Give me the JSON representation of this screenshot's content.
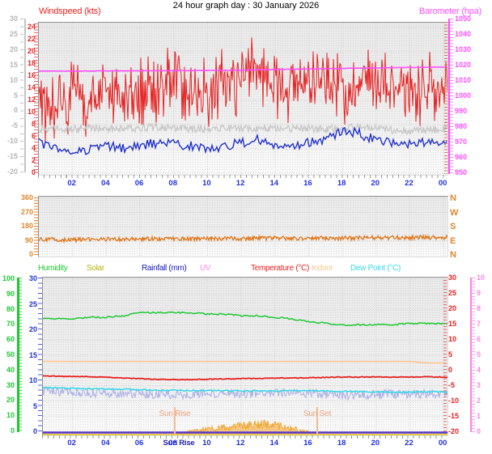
{
  "title": "24 hour graph day : 30 January 2026",
  "hour_labels": [
    "02",
    "04",
    "06",
    "08",
    "10",
    "12",
    "14",
    "16",
    "18",
    "20",
    "22",
    "00"
  ],
  "wind_panel": {
    "left_axis_label": "Windspeed (kts)",
    "right_axis_label": "Barometer (hpa)",
    "outer_left_ticks": [
      "30",
      "25",
      "20",
      "15",
      "10",
      "5",
      "0",
      "-5",
      "-10",
      "-15",
      "-20"
    ],
    "speed_ticks": [
      "24",
      "22",
      "20",
      "18",
      "16",
      "14",
      "12",
      "10",
      "8",
      "6",
      "4",
      "2",
      "0"
    ],
    "barometer_ticks": [
      "1050",
      "1040",
      "1030",
      "1020",
      "1010",
      "1000",
      "990",
      "980",
      "970",
      "960",
      "950"
    ]
  },
  "direction_panel": {
    "degree_ticks": [
      "360",
      "270",
      "180",
      "90",
      "0"
    ],
    "compass_ticks": [
      "N",
      "W",
      "S",
      "E",
      "N"
    ]
  },
  "climate_panel": {
    "legend": [
      {
        "label": "Humidity",
        "color": "#1ec832"
      },
      {
        "label": "Solar",
        "color": "#b9b414"
      },
      {
        "label": "Rainfall (mm)",
        "color": "#1515bb"
      },
      {
        "label": "UV",
        "color": "#ff85e0"
      },
      {
        "label": "Temperature (°C)",
        "color": "#e62222"
      },
      {
        "label": "Indoor",
        "color": "#ffc68f"
      },
      {
        "label": "Dew Point (°C)",
        "color": "#38d8e8"
      }
    ],
    "humidity_ticks": [
      "100",
      "90",
      "80",
      "70",
      "60",
      "50",
      "40",
      "30",
      "20",
      "10",
      "0"
    ],
    "rain_ticks": [
      "30",
      "25",
      "20",
      "15",
      "10",
      "5",
      "0"
    ],
    "temp_ticks": [
      "30",
      "25",
      "20",
      "15",
      "10",
      "5",
      "0",
      "-5",
      "-10",
      "-15",
      "-20"
    ],
    "uv_ticks": [
      "10",
      "9",
      "8",
      "7",
      "6",
      "5",
      "4",
      "3",
      "2",
      "1",
      "0"
    ],
    "sunrise_label": "Sun Rise",
    "sunset_label": "Sun Set",
    "sunrise_axis_label": "Sun Rise"
  },
  "chart_data": [
    {
      "id": "wind_and_barometer",
      "type": "line",
      "x_unit": "hour_of_day",
      "x_range": [
        0,
        24
      ],
      "x_tick_labels": [
        "02",
        "04",
        "06",
        "08",
        "10",
        "12",
        "14",
        "16",
        "18",
        "20",
        "22",
        "00"
      ],
      "left_axis": {
        "label": "Windspeed (kts)",
        "range": [
          0,
          24
        ]
      },
      "outer_left_axis": {
        "range": [
          -20,
          30
        ]
      },
      "right_axis": {
        "label": "Barometer (hpa)",
        "range": [
          950,
          1050
        ]
      },
      "series": [
        {
          "name": "wind_gust_kts",
          "color": "#e62222",
          "noise": 5.5,
          "values": [
            12,
            11,
            13,
            12,
            14,
            13,
            12,
            14,
            15,
            14,
            13,
            15,
            16,
            17,
            15,
            14,
            16,
            15,
            14,
            15,
            16,
            15,
            14,
            13,
            13
          ]
        },
        {
          "name": "wind_secondary_gray",
          "color": "#c9c9c9",
          "noise": 0.65,
          "values": [
            7.3,
            7.4,
            7.2,
            7.5,
            7.4,
            7.3,
            7.5,
            7.6,
            7.4,
            7.3,
            7.4,
            7.5,
            7.3,
            7.4,
            7.5,
            7.4,
            7.3,
            7.2,
            7.4,
            7.6,
            7.3,
            7.1,
            7.0,
            7.1,
            7.2
          ]
        },
        {
          "name": "wind_average_kts",
          "color": "#2233cc",
          "noise": 0.8,
          "values": [
            5,
            4,
            3.5,
            4,
            4.5,
            4,
            4.5,
            5,
            4.8,
            4.5,
            4,
            4.5,
            5,
            5.5,
            4.5,
            4,
            5,
            5.5,
            7,
            6.5,
            5.5,
            5,
            4.8,
            5,
            5.5
          ]
        },
        {
          "name": "barometer_hpa",
          "color": "#ff4dff",
          "noise": 0.12,
          "values": [
            1016.4,
            1016.4,
            1016.4,
            1016.5,
            1016.5,
            1016.5,
            1016.6,
            1016.6,
            1016.7,
            1016.7,
            1016.8,
            1016.9,
            1017.0,
            1017.2,
            1017.4,
            1017.6,
            1017.8,
            1017.9,
            1018.1,
            1018.3,
            1018.5,
            1018.6,
            1018.8,
            1018.9,
            1019.0
          ]
        }
      ]
    },
    {
      "id": "wind_direction",
      "type": "line",
      "x_unit": "hour_of_day",
      "x_range": [
        0,
        24
      ],
      "y_axis": {
        "range": [
          0,
          360
        ],
        "tick_labels": [
          "360",
          "270",
          "180",
          "90",
          "0"
        ],
        "compass": [
          "N",
          "W",
          "S",
          "E",
          "N"
        ]
      },
      "series": [
        {
          "name": "wind_direction_deg",
          "color": "#e0761a",
          "noise": 13,
          "values": [
            100,
            97,
            95,
            98,
            100,
            99,
            101,
            103,
            104,
            102,
            104,
            105,
            103,
            106,
            107,
            105,
            106,
            108,
            106,
            108,
            110,
            109,
            111,
            112,
            111
          ]
        }
      ]
    },
    {
      "id": "climate",
      "type": "line",
      "x_unit": "hour_of_day",
      "x_range": [
        0,
        24
      ],
      "left_axis": {
        "label": "Humidity %",
        "range": [
          0,
          100
        ]
      },
      "inner_left_axis": {
        "label": "Rainfall (mm)",
        "range": [
          0,
          30
        ]
      },
      "right_axis": {
        "label": "Temperature (°C)",
        "range": [
          -20,
          30
        ]
      },
      "outer_right_axis": {
        "label": "UV",
        "range": [
          0,
          10
        ]
      },
      "events": {
        "sunrise_hour": 8.1,
        "sunset_hour": 16.5
      },
      "series": [
        {
          "name": "wind_chill_c",
          "color": "#abb0e6",
          "noise": 1.5,
          "values": [
            -6.5,
            -6.8,
            -7.0,
            -7.2,
            -7.4,
            -7.3,
            -7.5,
            -7.6,
            -7.7,
            -7.6,
            -7.5,
            -7.4,
            -7.5,
            -7.6,
            -7.4,
            -7.3,
            -7.5,
            -7.8,
            -8.2,
            -8.0,
            -7.8,
            -7.6,
            -7.5,
            -7.4,
            -7.5
          ]
        },
        {
          "name": "humidity_pct",
          "color": "#1ec832",
          "noise": 0.5,
          "values": [
            74,
            74,
            74,
            75,
            75,
            76,
            78,
            78,
            78,
            78,
            77,
            77,
            76,
            76,
            75,
            74,
            72,
            71,
            70,
            70,
            70,
            70,
            71,
            71,
            71
          ]
        },
        {
          "name": "indoor_temperature_c",
          "color": "#ffc68f",
          "noise": 0,
          "values": [
            3,
            3,
            3,
            3,
            3,
            3,
            3,
            3,
            3,
            3,
            3,
            3,
            3,
            3,
            3,
            3,
            3,
            3,
            3,
            3,
            3,
            3,
            3,
            2.5,
            2.5
          ]
        },
        {
          "name": "temperature_c",
          "color": "#e62222",
          "noise": 0.12,
          "values": [
            -1.6,
            -1.8,
            -1.9,
            -2.0,
            -2.2,
            -2.4,
            -2.6,
            -2.8,
            -2.9,
            -2.9,
            -2.8,
            -2.7,
            -2.6,
            -2.5,
            -2.4,
            -2.4,
            -2.3,
            -2.2,
            -2.1,
            -2.1,
            -2.0,
            -2.1,
            -2.1,
            -2.0,
            -2.1
          ]
        },
        {
          "name": "dew_point_c",
          "color": "#38d8e8",
          "noise": 0.22,
          "values": [
            -5.5,
            -5.6,
            -5.8,
            -5.9,
            -6.0,
            -6.1,
            -6.2,
            -6.3,
            -6.4,
            -6.4,
            -6.5,
            -6.5,
            -6.6,
            -6.6,
            -6.6,
            -6.5,
            -6.5,
            -6.6,
            -6.7,
            -6.8,
            -6.9,
            -7.0,
            -7.0,
            -6.9,
            -6.9
          ]
        },
        {
          "name": "solar_relative_pct_of_scale",
          "color": "#f0a830",
          "noise": 0.9,
          "values": [
            0,
            0,
            0,
            0,
            0,
            0,
            0,
            0,
            0.3,
            2,
            3.5,
            4.5,
            5.5,
            6.5,
            6,
            4,
            1.5,
            0,
            0,
            0,
            0,
            0,
            0,
            0,
            0
          ]
        },
        {
          "name": "rainfall_mm",
          "color": "#5a35c8",
          "noise": 0,
          "values": [
            0,
            0,
            0,
            0,
            0,
            0,
            0,
            0,
            0,
            0,
            0,
            0,
            0,
            0,
            0,
            0,
            0,
            0,
            0,
            0,
            0,
            0,
            0,
            0,
            0
          ]
        },
        {
          "name": "uv_index",
          "color": "#ff85e0",
          "noise": 0,
          "values": [
            0,
            0,
            0,
            0,
            0,
            0,
            0,
            0,
            0,
            0,
            0,
            0,
            0,
            0,
            0,
            0,
            0,
            0,
            0,
            0,
            0,
            0,
            0,
            0,
            0
          ]
        }
      ]
    }
  ]
}
